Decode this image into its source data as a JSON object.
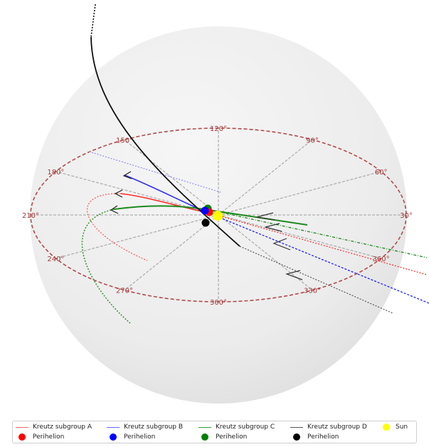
{
  "chart_data": {
    "type": "3d-orbit-plot",
    "ecliptic_longitude_ticks": [
      "30°",
      "60°",
      "90°",
      "120°",
      "150°",
      "180°",
      "210°",
      "240°",
      "270°",
      "300°",
      "330°",
      "360°"
    ],
    "series": [
      {
        "name": "Kreutz subgroup A",
        "color": "#ff0000"
      },
      {
        "name": "Kreutz subgroup B",
        "color": "#0000ff"
      },
      {
        "name": "Kreutz subgroup C",
        "color": "#008000"
      },
      {
        "name": "Kreutz subgroup D",
        "color": "#000000"
      }
    ],
    "perihelion_label": "Perihelion",
    "sun": {
      "name": "Sun",
      "color": "#ffff00"
    },
    "colors": {
      "ring": "#b44a4a",
      "sphere": "#ececec",
      "spokes": "#9a9a9a"
    }
  }
}
